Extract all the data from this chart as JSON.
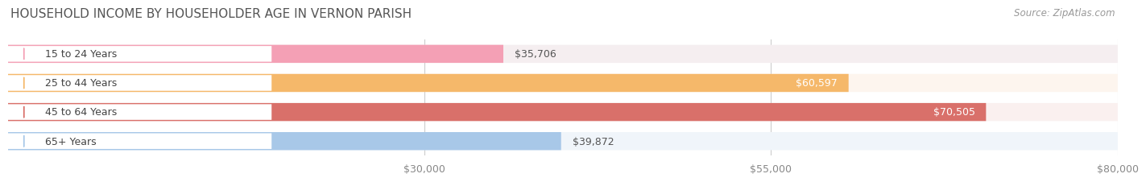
{
  "title": "HOUSEHOLD INCOME BY HOUSEHOLDER AGE IN VERNON PARISH",
  "source": "Source: ZipAtlas.com",
  "categories": [
    "15 to 24 Years",
    "25 to 44 Years",
    "45 to 64 Years",
    "65+ Years"
  ],
  "values": [
    35706,
    60597,
    70505,
    39872
  ],
  "bar_colors": [
    "#f4a0b5",
    "#f5b86a",
    "#d9706a",
    "#a8c8e8"
  ],
  "bar_bg_colors": [
    "#f5eef0",
    "#fdf5ee",
    "#faf0ef",
    "#f0f5fa"
  ],
  "value_labels": [
    "$35,706",
    "$60,597",
    "$70,505",
    "$39,872"
  ],
  "value_in_bar": [
    false,
    true,
    true,
    false
  ],
  "xmin": 0,
  "xmax": 80000,
  "xticks": [
    30000,
    55000,
    80000
  ],
  "xtick_labels": [
    "$30,000",
    "$55,000",
    "$80,000"
  ],
  "background_color": "#ffffff",
  "title_color": "#555555",
  "source_color": "#999999",
  "title_fontsize": 11,
  "source_fontsize": 8.5,
  "label_fontsize": 9,
  "value_fontsize": 9
}
